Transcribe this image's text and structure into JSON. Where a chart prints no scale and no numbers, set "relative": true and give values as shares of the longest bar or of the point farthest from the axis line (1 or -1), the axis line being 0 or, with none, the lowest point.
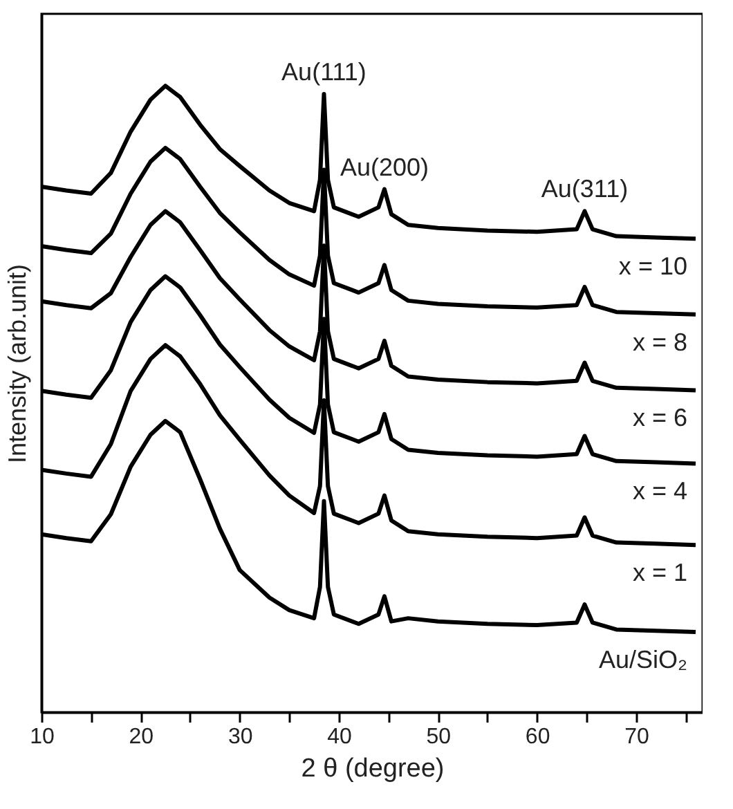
{
  "chart_data": {
    "type": "line",
    "relative": true,
    "xlabel": "2 θ (degree)",
    "ylabel": "Intensity (arb.unit)",
    "xlim": [
      10,
      76.7
    ],
    "xticks": [
      10,
      {
        "value": 15,
        "label": null
      },
      20,
      {
        "value": 25,
        "label": null
      },
      30,
      {
        "value": 35,
        "label": null
      },
      40,
      {
        "value": 45,
        "label": null
      },
      50,
      {
        "value": 55,
        "label": null
      },
      60,
      {
        "value": 65,
        "label": null
      },
      70,
      {
        "value": 75,
        "label": null
      }
    ],
    "grid": false,
    "legend": false,
    "x": [
      10,
      12.5,
      15,
      17,
      19,
      21,
      22.5,
      24,
      26,
      28,
      30,
      33,
      35,
      37.5,
      38.1,
      38.5,
      38.9,
      39.5,
      42,
      44,
      44.6,
      45.3,
      47,
      50,
      55,
      60,
      64,
      64.8,
      65.6,
      68,
      72,
      76
    ],
    "series": [
      {
        "name": "x = 10",
        "color": "#000000",
        "values": [
          0.839,
          0.833,
          0.828,
          0.861,
          0.927,
          0.978,
          1.0,
          0.982,
          0.938,
          0.899,
          0.872,
          0.833,
          0.813,
          0.8,
          0.85,
          0.987,
          0.85,
          0.806,
          0.791,
          0.806,
          0.835,
          0.795,
          0.778,
          0.773,
          0.769,
          0.767,
          0.771,
          0.8,
          0.771,
          0.76,
          0.758,
          0.756
        ]
      },
      {
        "name": "x = 8",
        "color": "#000000",
        "values": [
          0.744,
          0.738,
          0.733,
          0.764,
          0.828,
          0.879,
          0.901,
          0.883,
          0.839,
          0.797,
          0.766,
          0.722,
          0.699,
          0.681,
          0.729,
          0.866,
          0.729,
          0.685,
          0.67,
          0.685,
          0.714,
          0.674,
          0.657,
          0.652,
          0.648,
          0.646,
          0.65,
          0.679,
          0.65,
          0.639,
          0.637,
          0.635
        ]
      },
      {
        "name": "x = 6",
        "color": "#000000",
        "values": [
          0.656,
          0.65,
          0.645,
          0.669,
          0.727,
          0.778,
          0.8,
          0.782,
          0.738,
          0.693,
          0.659,
          0.61,
          0.584,
          0.562,
          0.608,
          0.745,
          0.608,
          0.564,
          0.549,
          0.564,
          0.593,
          0.553,
          0.536,
          0.531,
          0.527,
          0.525,
          0.529,
          0.558,
          0.529,
          0.518,
          0.516,
          0.514
        ]
      },
      {
        "name": "x = 4",
        "color": "#000000",
        "values": [
          0.513,
          0.507,
          0.502,
          0.546,
          0.623,
          0.674,
          0.696,
          0.678,
          0.634,
          0.587,
          0.551,
          0.499,
          0.47,
          0.446,
          0.491,
          0.628,
          0.491,
          0.447,
          0.432,
          0.447,
          0.476,
          0.436,
          0.419,
          0.414,
          0.41,
          0.408,
          0.412,
          0.441,
          0.412,
          0.401,
          0.399,
          0.397
        ]
      },
      {
        "name": "x = 1",
        "color": "#000000",
        "values": [
          0.387,
          0.381,
          0.376,
          0.428,
          0.513,
          0.564,
          0.586,
          0.568,
          0.524,
          0.474,
          0.435,
          0.378,
          0.346,
          0.318,
          0.361,
          0.498,
          0.361,
          0.317,
          0.302,
          0.317,
          0.346,
          0.306,
          0.289,
          0.284,
          0.28,
          0.278,
          0.282,
          0.311,
          0.282,
          0.271,
          0.269,
          0.267
        ]
      },
      {
        "name": "Au/SiO₂",
        "color": "#000000",
        "values": [
          0.284,
          0.278,
          0.273,
          0.316,
          0.392,
          0.443,
          0.465,
          0.447,
          0.372,
          0.293,
          0.227,
          0.183,
          0.163,
          0.15,
          0.2,
          0.337,
          0.2,
          0.156,
          0.141,
          0.156,
          0.185,
          0.145,
          0.15,
          0.145,
          0.141,
          0.139,
          0.143,
          0.172,
          0.143,
          0.132,
          0.13,
          0.128
        ]
      }
    ],
    "annotations": [
      {
        "text": "Au(111)",
        "x": 38.5,
        "y": 0.987
      },
      {
        "text": "Au(200)",
        "x": 44.6,
        "y": 0.835
      },
      {
        "text": "Au(311)",
        "x": 64.8,
        "y": 0.8
      }
    ]
  }
}
